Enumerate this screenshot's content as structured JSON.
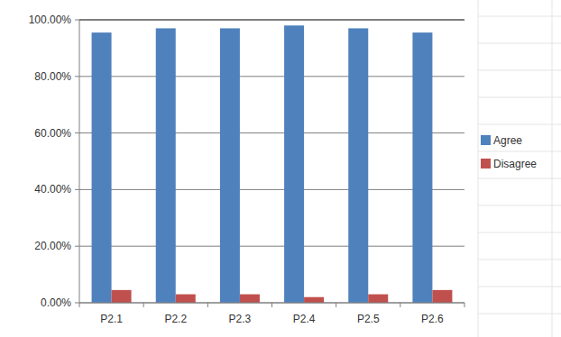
{
  "chart_data": {
    "type": "bar",
    "categories": [
      "P2.1",
      "P2.2",
      "P2.3",
      "P2.4",
      "P2.5",
      "P2.6"
    ],
    "series": [
      {
        "name": "Agree",
        "color": "#4f81bd",
        "values": [
          95.5,
          97,
          97,
          98,
          97,
          95.5
        ]
      },
      {
        "name": "Disagree",
        "color": "#c0504d",
        "values": [
          4.5,
          3,
          3,
          2,
          3,
          4.5
        ]
      }
    ],
    "ylim": [
      0,
      100
    ],
    "yticks": [
      {
        "value": 0,
        "label": "0.00%"
      },
      {
        "value": 20,
        "label": "20.00%"
      },
      {
        "value": 40,
        "label": "40.00%"
      },
      {
        "value": 60,
        "label": "60.00%"
      },
      {
        "value": 80,
        "label": "80.00%"
      },
      {
        "value": 100,
        "label": "100.00%"
      }
    ],
    "grid": true,
    "legend": "right"
  }
}
